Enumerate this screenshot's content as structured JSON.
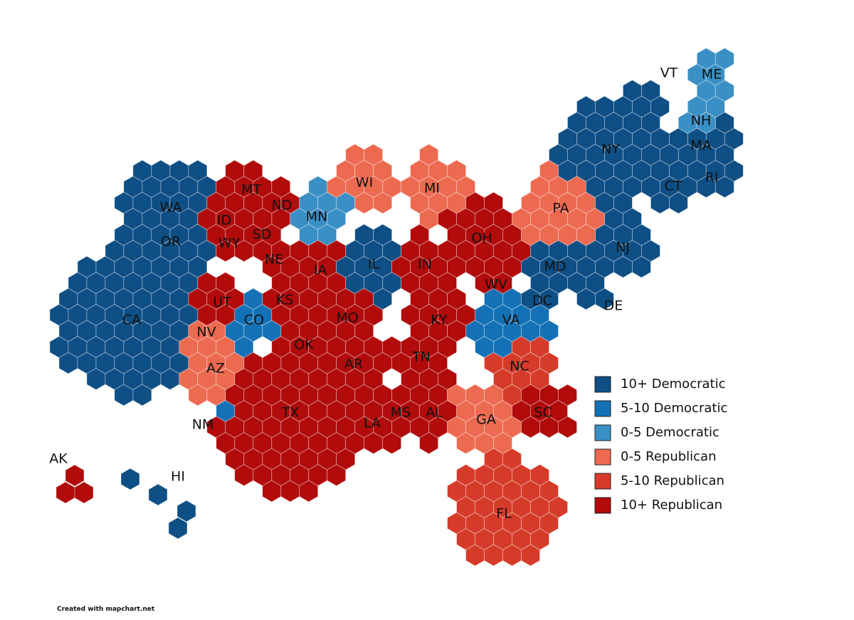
{
  "map": {
    "states": [
      {
        "label": "WA",
        "color": "#0e4f85"
      },
      {
        "label": "OR",
        "color": "#0e4f85"
      },
      {
        "label": "CA",
        "color": "#0e4f85"
      },
      {
        "label": "NV",
        "color": "#ec6a50"
      },
      {
        "label": "UT",
        "color": "#b10b0b"
      },
      {
        "label": "AZ",
        "color": "#ec6a50"
      },
      {
        "label": "ID",
        "color": "#b10b0b"
      },
      {
        "label": "MT",
        "color": "#b10b0b"
      },
      {
        "label": "WY",
        "color": "#b10b0b"
      },
      {
        "label": "CO",
        "color": "#1471b5"
      },
      {
        "label": "NM",
        "color": "#1471b5"
      },
      {
        "label": "ND",
        "color": "#b10b0b"
      },
      {
        "label": "SD",
        "color": "#b10b0b"
      },
      {
        "label": "NE",
        "color": "#b10b0b"
      },
      {
        "label": "KS",
        "color": "#b10b0b"
      },
      {
        "label": "OK",
        "color": "#b10b0b"
      },
      {
        "label": "TX",
        "color": "#b10b0b"
      },
      {
        "label": "MN",
        "color": "#3a8fc4"
      },
      {
        "label": "IA",
        "color": "#b10b0b"
      },
      {
        "label": "MO",
        "color": "#b10b0b"
      },
      {
        "label": "AR",
        "color": "#b10b0b"
      },
      {
        "label": "LA",
        "color": "#b10b0b"
      },
      {
        "label": "WI",
        "color": "#ec6a50"
      },
      {
        "label": "IL",
        "color": "#0e4f85"
      },
      {
        "label": "MI",
        "color": "#ec6a50"
      },
      {
        "label": "IN",
        "color": "#b10b0b"
      },
      {
        "label": "OH",
        "color": "#b10b0b"
      },
      {
        "label": "KY",
        "color": "#b10b0b"
      },
      {
        "label": "TN",
        "color": "#b10b0b"
      },
      {
        "label": "MS",
        "color": "#b10b0b"
      },
      {
        "label": "AL",
        "color": "#b10b0b"
      },
      {
        "label": "GA",
        "color": "#ec6a50"
      },
      {
        "label": "FL",
        "color": "#d63b2a"
      },
      {
        "label": "SC",
        "color": "#b10b0b"
      },
      {
        "label": "NC",
        "color": "#d63b2a"
      },
      {
        "label": "VA",
        "color": "#1471b5"
      },
      {
        "label": "WV",
        "color": "#b10b0b"
      },
      {
        "label": "MD",
        "color": "#0e4f85"
      },
      {
        "label": "DC",
        "color": "#0e4f85"
      },
      {
        "label": "DE",
        "color": "#0e4f85"
      },
      {
        "label": "NJ",
        "color": "#0e4f85"
      },
      {
        "label": "PA",
        "color": "#ec6a50"
      },
      {
        "label": "NY",
        "color": "#0e4f85"
      },
      {
        "label": "CT",
        "color": "#0e4f85"
      },
      {
        "label": "RI",
        "color": "#0e4f85"
      },
      {
        "label": "MA",
        "color": "#0e4f85"
      },
      {
        "label": "NH",
        "color": "#3a8fc4"
      },
      {
        "label": "VT",
        "color": "#0e4f85"
      },
      {
        "label": "ME",
        "color": "#3a8fc4"
      },
      {
        "label": "AK",
        "color": "#b10b0b"
      },
      {
        "label": "HI",
        "color": "#0e4f85"
      }
    ],
    "legend": [
      {
        "label": "10+ Democratic",
        "color": "#0e4f85"
      },
      {
        "label": "5-10 Democratic",
        "color": "#1471b5"
      },
      {
        "label": "0-5 Democratic",
        "color": "#3a8fc4"
      },
      {
        "label": "0-5 Republican",
        "color": "#ec6a50"
      },
      {
        "label": "5-10 Republican",
        "color": "#d63b2a"
      },
      {
        "label": "10+ Republican",
        "color": "#b10b0b"
      }
    ],
    "credit": "Created with mapchart.net"
  }
}
